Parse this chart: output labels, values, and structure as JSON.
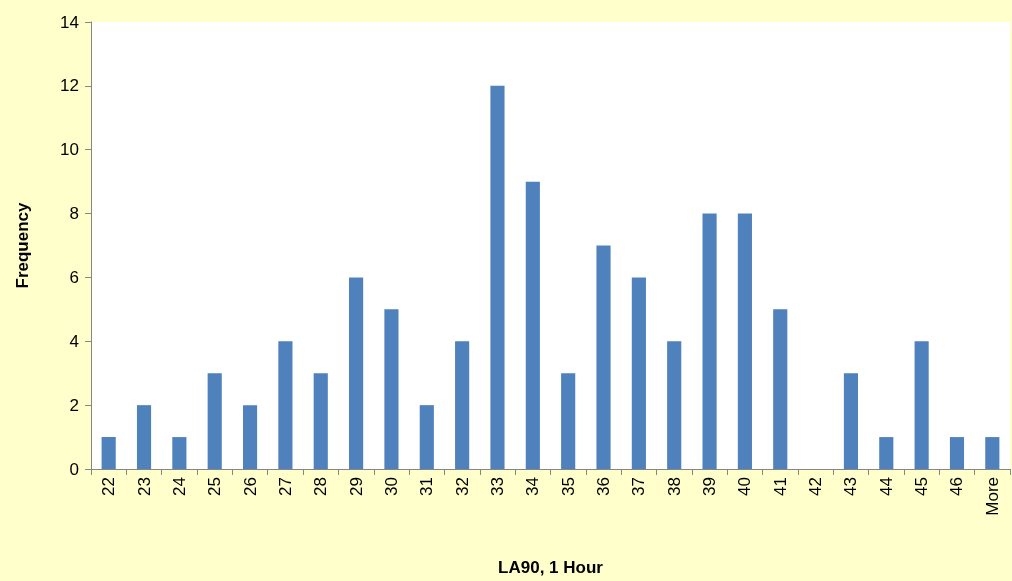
{
  "chart_data": {
    "type": "bar",
    "xlabel": "LA90, 1 Hour",
    "ylabel": "Frequency",
    "categories": [
      "22",
      "23",
      "24",
      "25",
      "26",
      "27",
      "28",
      "29",
      "30",
      "31",
      "32",
      "33",
      "34",
      "35",
      "36",
      "37",
      "38",
      "39",
      "40",
      "41",
      "42",
      "43",
      "44",
      "45",
      "46",
      "More"
    ],
    "values": [
      1,
      2,
      1,
      3,
      2,
      4,
      3,
      6,
      5,
      2,
      4,
      12,
      9,
      3,
      7,
      6,
      4,
      8,
      8,
      5,
      0,
      3,
      1,
      4,
      1,
      1
    ],
    "color": "#4f81bd",
    "ylim": [
      0,
      14
    ],
    "yticks": [
      0,
      2,
      4,
      6,
      8,
      10,
      12,
      14
    ],
    "grid": false
  }
}
